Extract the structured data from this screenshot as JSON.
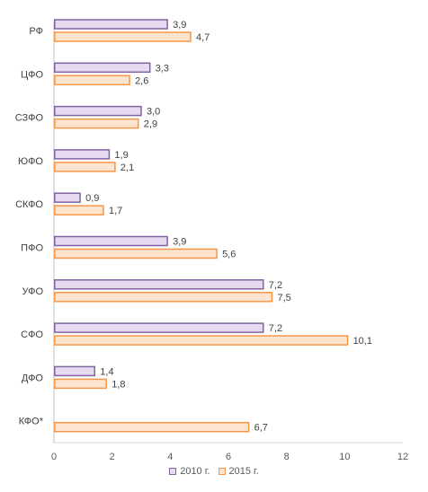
{
  "chart_data": {
    "type": "bar",
    "orientation": "horizontal",
    "categories": [
      "РФ",
      "ЦФО",
      "СЗФО",
      "ЮФО",
      "СКФО",
      "ПФО",
      "УФО",
      "СФО",
      "ДФО",
      "КФО*"
    ],
    "series": [
      {
        "name": "2010 г.",
        "values": [
          3.9,
          3.3,
          3.0,
          1.9,
          0.9,
          3.9,
          7.2,
          7.2,
          1.4,
          null
        ],
        "labels": [
          "3,9",
          "3,3",
          "3,0",
          "1,9",
          "0,9",
          "3,9",
          "7,2",
          "7,2",
          "1,4",
          ""
        ],
        "fill": "#e6daf0",
        "stroke": "#8064a2"
      },
      {
        "name": "2015 г.",
        "values": [
          4.7,
          2.6,
          2.9,
          2.1,
          1.7,
          5.6,
          7.5,
          10.1,
          1.8,
          6.7
        ],
        "labels": [
          "4,7",
          "2,6",
          "2,9",
          "2,1",
          "1,7",
          "5,6",
          "7,5",
          "10,1",
          "1,8",
          "6,7"
        ],
        "fill": "#fde4cf",
        "stroke": "#f79646"
      }
    ],
    "xlim": [
      0,
      12
    ],
    "xticks": [
      "0",
      "2",
      "4",
      "6",
      "8",
      "10",
      "12"
    ],
    "grid": false,
    "legend_position": "bottom",
    "title": "",
    "xlabel": "",
    "ylabel": ""
  }
}
